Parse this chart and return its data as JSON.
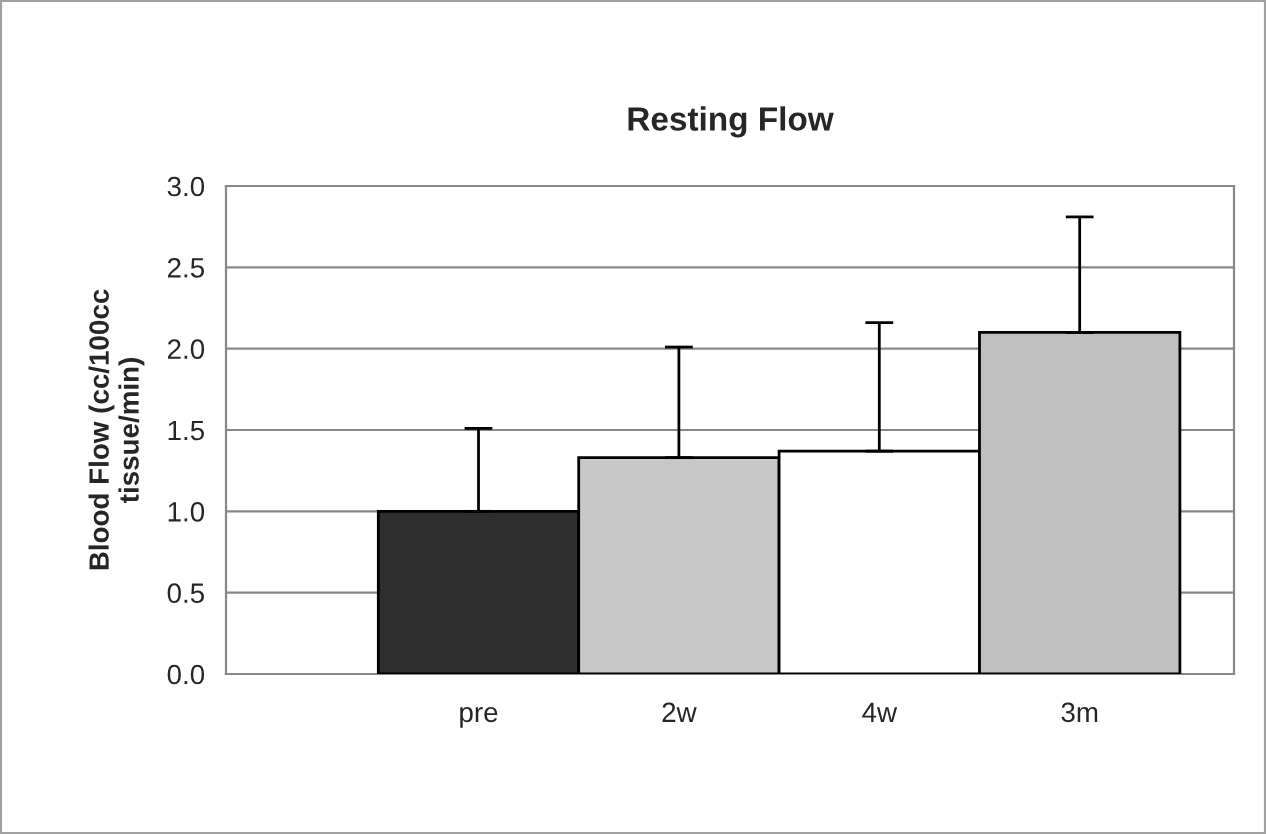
{
  "chart_data": {
    "type": "bar",
    "title": "Resting Flow",
    "ylabel": "Blood Flow (cc/100cc\ntissue/min)",
    "categories": [
      "pre",
      "2w",
      "4w",
      "3m"
    ],
    "values": [
      1.0,
      1.33,
      1.37,
      2.1
    ],
    "errors": [
      [
        1.0,
        1.51
      ],
      [
        1.33,
        2.01
      ],
      [
        1.37,
        2.16
      ],
      [
        2.1,
        2.81
      ]
    ],
    "colors": [
      "#2e2e2e",
      "#c8c8c8",
      "#ffffff",
      "#c0c0c0"
    ],
    "ylim": [
      0,
      3.0
    ],
    "yticks": [
      {
        "value": 0,
        "label": "0.0"
      },
      {
        "value": 0.5,
        "label": "0.5"
      },
      {
        "value": 1.0,
        "label": "1.0"
      },
      {
        "value": 1.5,
        "label": "1.5"
      },
      {
        "value": 2.0,
        "label": "2.0"
      },
      {
        "value": 2.5,
        "label": "2.5"
      },
      {
        "value": 3.0,
        "label": "3.0"
      }
    ],
    "grid": "y",
    "legend": false
  }
}
